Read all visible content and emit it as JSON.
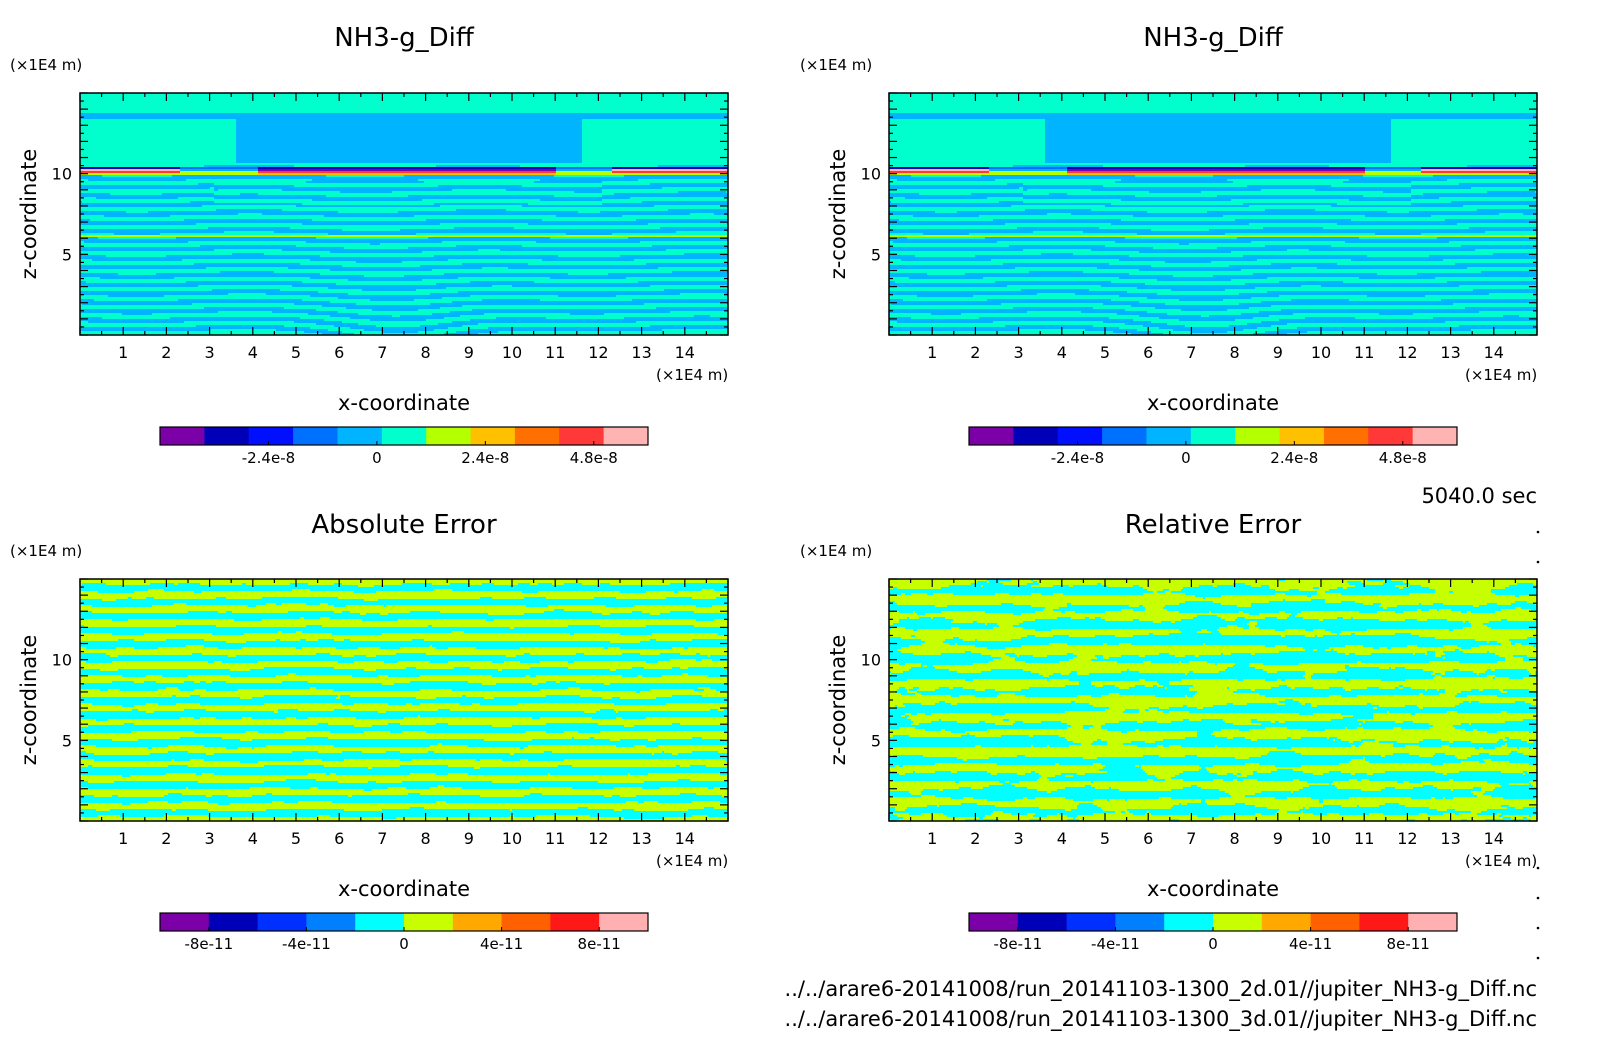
{
  "chart_data": [
    {
      "type": "heatmap",
      "panel": "top-left",
      "title": "NH3-g_Diff",
      "xlabel": "x-coordinate",
      "ylabel": "z-coordinate",
      "x_unit": "(×1E4 m)",
      "y_unit": "(×1E4 m)",
      "xlim": [
        0,
        15
      ],
      "ylim": [
        0,
        15
      ],
      "x_ticks": [
        1,
        2,
        3,
        4,
        5,
        6,
        7,
        8,
        9,
        10,
        11,
        12,
        13,
        14
      ],
      "y_ticks": [
        5,
        10
      ],
      "field": "layered",
      "colorbar": {
        "colors": [
          "#7b00a8",
          "#0000b8",
          "#0010ff",
          "#0070ff",
          "#00b4ff",
          "#00ffcc",
          "#b4ff00",
          "#ffc000",
          "#ff7000",
          "#ff3838",
          "#ffb4b4"
        ],
        "tick_values": [
          -2.4e-08,
          0,
          2.4e-08,
          4.8e-08
        ],
        "tick_labels": [
          "-2.4e-8",
          "0",
          "2.4e-8",
          "4.8e-8"
        ],
        "range": [
          -4.8e-08,
          6e-08
        ]
      }
    },
    {
      "type": "heatmap",
      "panel": "top-right",
      "title": "NH3-g_Diff",
      "xlabel": "x-coordinate",
      "ylabel": "z-coordinate",
      "x_unit": "(×1E4 m)",
      "y_unit": "(×1E4 m)",
      "xlim": [
        0,
        15
      ],
      "ylim": [
        0,
        15
      ],
      "x_ticks": [
        1,
        2,
        3,
        4,
        5,
        6,
        7,
        8,
        9,
        10,
        11,
        12,
        13,
        14
      ],
      "y_ticks": [
        5,
        10
      ],
      "field": "layered",
      "colorbar": {
        "colors": [
          "#7b00a8",
          "#0000b8",
          "#0010ff",
          "#0070ff",
          "#00b4ff",
          "#00ffcc",
          "#b4ff00",
          "#ffc000",
          "#ff7000",
          "#ff3838",
          "#ffb4b4"
        ],
        "tick_values": [
          -2.4e-08,
          0,
          2.4e-08,
          4.8e-08
        ],
        "tick_labels": [
          "-2.4e-8",
          "0",
          "2.4e-8",
          "4.8e-8"
        ],
        "range": [
          -4.8e-08,
          6e-08
        ]
      }
    },
    {
      "type": "heatmap",
      "panel": "bottom-left",
      "title": "Absolute Error",
      "xlabel": "x-coordinate",
      "ylabel": "z-coordinate",
      "x_unit": "(×1E4 m)",
      "y_unit": "(×1E4 m)",
      "xlim": [
        0,
        15
      ],
      "ylim": [
        0,
        15
      ],
      "x_ticks": [
        1,
        2,
        3,
        4,
        5,
        6,
        7,
        8,
        9,
        10,
        11,
        12,
        13,
        14
      ],
      "y_ticks": [
        5,
        10
      ],
      "field": "noise-absolute",
      "colorbar": {
        "colors": [
          "#7b00a8",
          "#0000b8",
          "#0030ff",
          "#0080ff",
          "#00ffff",
          "#c8ff00",
          "#ffa800",
          "#ff6000",
          "#ff1818",
          "#ffb0b0"
        ],
        "tick_values": [
          -8e-11,
          -4e-11,
          0,
          4e-11,
          8e-11
        ],
        "tick_labels": [
          "-8e-11",
          "-4e-11",
          "0",
          "4e-11",
          "8e-11"
        ],
        "range": [
          -1e-10,
          1e-10
        ]
      }
    },
    {
      "type": "heatmap",
      "panel": "bottom-right",
      "title": "Relative Error",
      "xlabel": "x-coordinate",
      "ylabel": "z-coordinate",
      "x_unit": "(×1E4 m)",
      "y_unit": "(×1E4 m)",
      "xlim": [
        0,
        15
      ],
      "ylim": [
        0,
        15
      ],
      "x_ticks": [
        1,
        2,
        3,
        4,
        5,
        6,
        7,
        8,
        9,
        10,
        11,
        12,
        13,
        14
      ],
      "y_ticks": [
        5,
        10
      ],
      "field": "noise-relative",
      "colorbar": {
        "colors": [
          "#7b00a8",
          "#0000b8",
          "#0030ff",
          "#0080ff",
          "#00ffff",
          "#c8ff00",
          "#ffa800",
          "#ff6000",
          "#ff1818",
          "#ffb0b0"
        ],
        "tick_values": [
          -8e-11,
          -4e-11,
          0,
          4e-11,
          8e-11
        ],
        "tick_labels": [
          "-8e-11",
          "-4e-11",
          "0",
          "4e-11",
          "8e-11"
        ],
        "range": [
          -1e-10,
          1e-10
        ]
      }
    }
  ],
  "info": {
    "time": "5040.0 sec",
    "file1": "../../arare6-20141008/run_20141103-1300_2d.01//jupiter_NH3-g_Diff.nc",
    "file2": "../../arare6-20141008/run_20141103-1300_3d.01//jupiter_NH3-g_Diff.nc"
  }
}
